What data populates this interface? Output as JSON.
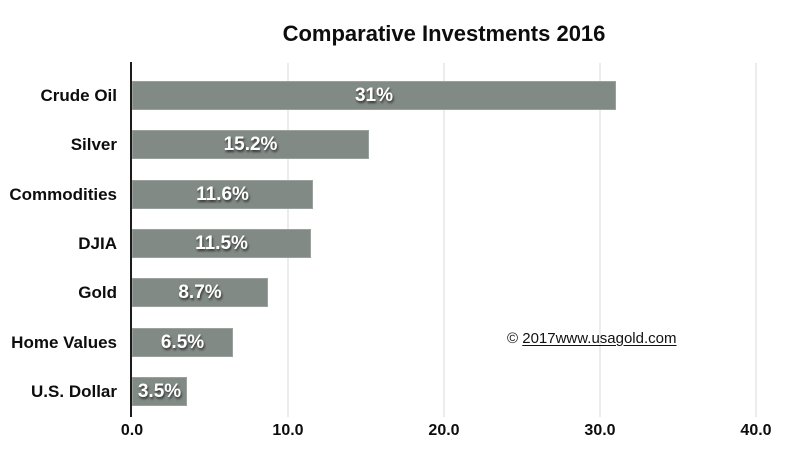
{
  "chart_data": {
    "type": "bar",
    "orientation": "horizontal",
    "title": "Comparative Investments 2016",
    "categories": [
      "Crude Oil",
      "Silver",
      "Commodities",
      "DJIA",
      "Gold",
      "Home Values",
      "U.S. Dollar"
    ],
    "values": [
      31,
      15.2,
      11.6,
      11.5,
      8.7,
      6.5,
      3.5
    ],
    "value_labels": [
      "31%",
      "15.2%",
      "11.6%",
      "11.5%",
      "8.7%",
      "6.5%",
      "3.5%"
    ],
    "xlim": [
      0,
      40
    ],
    "x_tick_values": [
      0,
      10,
      20,
      30,
      40
    ],
    "x_tick_labels": [
      "0.0",
      "10.0",
      "20.0",
      "30.0",
      "40.0"
    ],
    "grid": "vertical-gridlines-on",
    "legend": "none",
    "style": {
      "bar_color": "#828a86",
      "value_label_color": "#ffffff",
      "gridline_color": "#ececec",
      "axis_line_color": "#1c1c1c",
      "text_color": "#0d0d0d"
    }
  },
  "annotation": {
    "copyright_prefix": "© ",
    "copyright_text": "2017www.usagold.com"
  }
}
